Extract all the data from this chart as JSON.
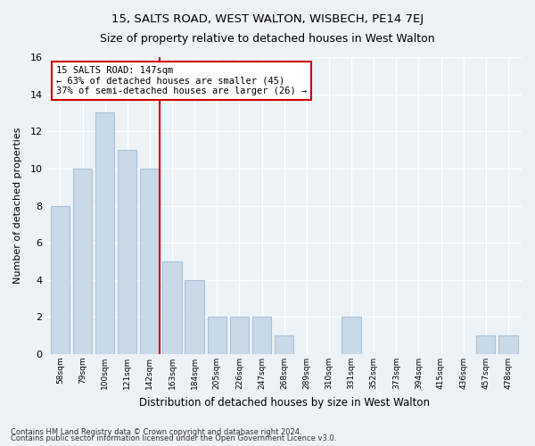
{
  "title1": "15, SALTS ROAD, WEST WALTON, WISBECH, PE14 7EJ",
  "title2": "Size of property relative to detached houses in West Walton",
  "xlabel": "Distribution of detached houses by size in West Walton",
  "ylabel": "Number of detached properties",
  "categories": [
    "58sqm",
    "79sqm",
    "100sqm",
    "121sqm",
    "142sqm",
    "163sqm",
    "184sqm",
    "205sqm",
    "226sqm",
    "247sqm",
    "268sqm",
    "289sqm",
    "310sqm",
    "331sqm",
    "352sqm",
    "373sqm",
    "394sqm",
    "415sqm",
    "436sqm",
    "457sqm",
    "478sqm"
  ],
  "values": [
    8,
    10,
    13,
    11,
    10,
    5,
    4,
    2,
    2,
    2,
    1,
    0,
    0,
    2,
    0,
    0,
    0,
    0,
    0,
    1,
    1
  ],
  "bar_color": "#c9d9e8",
  "bar_edgecolor": "#a8c4d8",
  "subject_bar_index": 4,
  "subject_sqm": "147sqm",
  "annotation_line1": "15 SALTS ROAD: 147sqm",
  "annotation_line2": "← 63% of detached houses are smaller (45)",
  "annotation_line3": "37% of semi-detached houses are larger (26) →",
  "footnote1": "Contains HM Land Registry data © Crown copyright and database right 2024.",
  "footnote2": "Contains public sector information licensed under the Open Government Licence v3.0.",
  "ylim": [
    0,
    16
  ],
  "yticks": [
    0,
    2,
    4,
    6,
    8,
    10,
    12,
    14,
    16
  ],
  "background_color": "#edf2f7",
  "grid_color": "#ffffff",
  "annotation_box_facecolor": "#ffffff",
  "annotation_box_edgecolor": "#cc0000",
  "red_line_color": "#cc0000",
  "title1_fontsize": 9.5,
  "title2_fontsize": 9.0
}
